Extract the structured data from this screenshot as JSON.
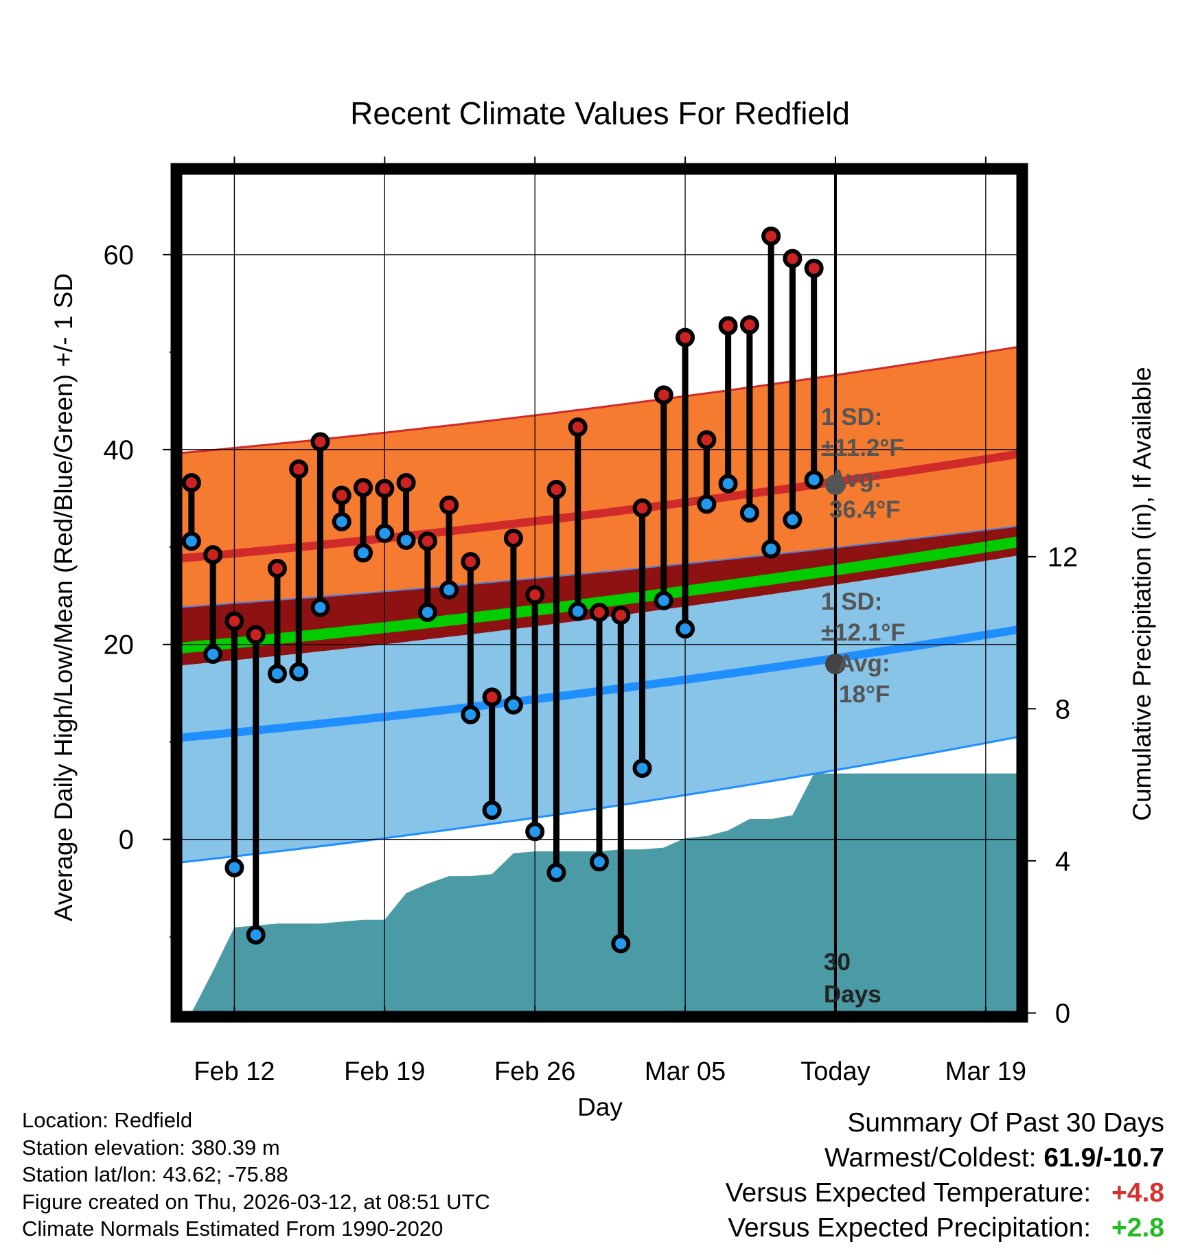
{
  "chart_data": {
    "type": "line",
    "title": "Recent Climate Values For Redfield",
    "xlabel": "Day",
    "ylabel": "Average Daily High/Low/Mean (Red/Blue/Green) +/- 1 SD",
    "y2label": "Cumulative Precipitation (in), If Available",
    "x_tick_labels": [
      "Feb 12",
      "Feb 19",
      "Feb 26",
      "Mar 05",
      "Today",
      "Mar 19"
    ],
    "x_tick_days": [
      2,
      9,
      16,
      23,
      30,
      37
    ],
    "xlim": [
      -0.7,
      38.7
    ],
    "ylim": [
      -18.2,
      68.8
    ],
    "y_ticks": [
      0,
      20,
      40,
      60
    ],
    "y2lim": [
      -0.1,
      22.2
    ],
    "y2_ticks": [
      0,
      4,
      8,
      12
    ],
    "today_day": 30,
    "window_label": "30 Days",
    "normals": {
      "high_mean_start": 28.8,
      "high_mean_end": 39.6,
      "high_upper_start": 39.6,
      "high_upper_end": 50.6,
      "high_lower_start": 23.8,
      "high_lower_end": 32.2,
      "low_mean_start": 10.4,
      "low_mean_end": 21.6,
      "low_upper_start": 17.8,
      "low_upper_end": 29.2,
      "low_lower_start": -2.4,
      "low_lower_end": 10.6,
      "avg_mean_start": 19.6,
      "avg_mean_end": 30.6
    },
    "annotations": {
      "high_sd": "1 SD:",
      "high_sd_value": "±11.2°F",
      "high_avg": "Avg:",
      "high_avg_value": "36.4°F",
      "high_avg_point": 36.4,
      "low_sd": "1 SD:",
      "low_sd_value": "±12.1°F",
      "low_avg": "Avg:",
      "low_avg_value": "18°F",
      "low_avg_point": 18.0
    },
    "series": [
      {
        "name": "Daily High",
        "color": "#cc2222",
        "values": [
          36.6,
          29.2,
          22.4,
          21.0,
          27.8,
          38.0,
          40.8,
          35.3,
          36.1,
          36.0,
          36.6,
          30.6,
          34.3,
          28.5,
          14.6,
          30.9,
          25.1,
          35.9,
          42.3,
          23.3,
          23.0,
          34.0,
          45.6,
          51.5,
          41.0,
          52.7,
          52.8,
          61.9,
          59.6,
          58.6
        ]
      },
      {
        "name": "Daily Low",
        "color": "#2299ee",
        "values": [
          30.6,
          19.0,
          -2.9,
          -9.8,
          17.0,
          17.2,
          23.8,
          32.6,
          29.4,
          31.4,
          30.7,
          23.3,
          25.6,
          12.8,
          3.0,
          13.8,
          0.8,
          -3.4,
          23.4,
          -2.3,
          -10.7,
          7.3,
          24.5,
          21.6,
          34.4,
          36.5,
          33.5,
          29.8,
          32.8,
          36.9
        ]
      },
      {
        "name": "Cumulative Precipitation",
        "days": [
          0,
          1,
          2,
          3,
          4,
          5,
          6,
          7,
          8,
          9,
          10,
          11,
          12,
          13,
          14,
          15,
          16,
          17,
          18,
          19,
          20,
          21,
          22,
          23,
          24,
          25,
          26,
          27,
          28,
          29,
          30,
          38.7
        ],
        "values": [
          0.0,
          1.1,
          2.25,
          2.3,
          2.35,
          2.35,
          2.35,
          2.4,
          2.45,
          2.45,
          3.15,
          3.4,
          3.6,
          3.6,
          3.65,
          4.2,
          4.25,
          4.25,
          4.25,
          4.25,
          4.3,
          4.3,
          4.35,
          4.6,
          4.65,
          4.8,
          5.1,
          5.1,
          5.2,
          6.3,
          6.3,
          6.3
        ]
      }
    ]
  },
  "footer": {
    "location": "Location: Redfield",
    "elevation": "Station elevation: 380.39 m",
    "latlon": "Station lat/lon: 43.62; -75.88",
    "created": "Figure created on Thu, 2026-03-12, at 08:51 UTC",
    "normals": "Climate Normals Estimated From 1990-2020"
  },
  "summary": {
    "title": "Summary Of Past 30 Days",
    "warm_cold_label": "Warmest/Coldest:",
    "warm_cold_value": "61.9/-10.7",
    "temp_label": "Versus Expected Temperature:",
    "temp_value": "+4.8",
    "precip_label": "Versus Expected Precipitation:",
    "precip_value": "+2.8"
  },
  "colors": {
    "high_band": "#f47b2f",
    "high_line": "#d12a2a",
    "low_band": "#88c3e8",
    "low_line": "#1f8fff",
    "avg_band_bg": "#8f1212",
    "avg_line": "#00cc00",
    "precip_fill": "#4a9ba6",
    "high_marker": "#cc2222",
    "low_marker": "#2299ee"
  }
}
